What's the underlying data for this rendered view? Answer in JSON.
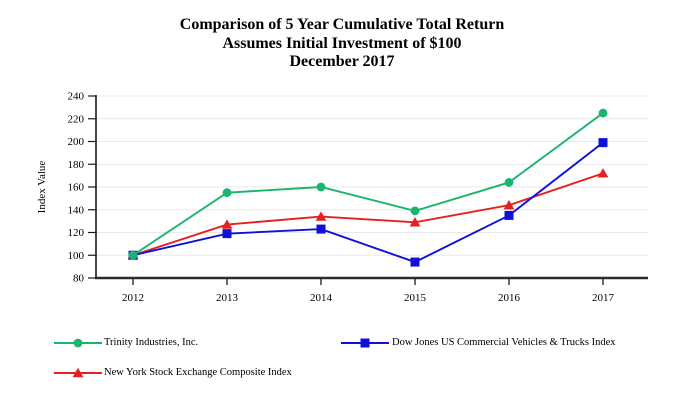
{
  "title_lines": [
    "Comparison of 5 Year Cumulative Total Return",
    "Assumes Initial Investment of $100",
    "December 2017"
  ],
  "chart_data": {
    "type": "line",
    "title": "Comparison of 5 Year Cumulative Total Return Assumes Initial Investment of $100 December 2017",
    "xlabel": "",
    "ylabel": "Index Value",
    "x": [
      "2012",
      "2013",
      "2014",
      "2015",
      "2016",
      "2017"
    ],
    "ylim": [
      80,
      240
    ],
    "ytick_step": 20,
    "yticks": [
      80,
      100,
      120,
      140,
      160,
      180,
      200,
      220,
      240
    ],
    "grid": "horizontal",
    "legend_position": "bottom",
    "series": [
      {
        "name": "Trinity Industries, Inc.",
        "marker": "circle",
        "color": "#1ab56c",
        "values": [
          100,
          155,
          160,
          139,
          164,
          225
        ]
      },
      {
        "name": "Dow Jones US Commercial Vehicles & Trucks Index",
        "marker": "square",
        "color": "#1010d6",
        "values": [
          100,
          119,
          123,
          94,
          135,
          199
        ]
      },
      {
        "name": "New York Stock Exchange Composite Index",
        "marker": "triangle",
        "color": "#e52020",
        "values": [
          100,
          127,
          134,
          129,
          144,
          172
        ]
      }
    ],
    "colors": {
      "gridline": "#e8e8e8",
      "y_axis": "#1a1a1a",
      "x_axis": "#2b2b2b",
      "text": "#000000",
      "background": "#ffffff"
    }
  }
}
